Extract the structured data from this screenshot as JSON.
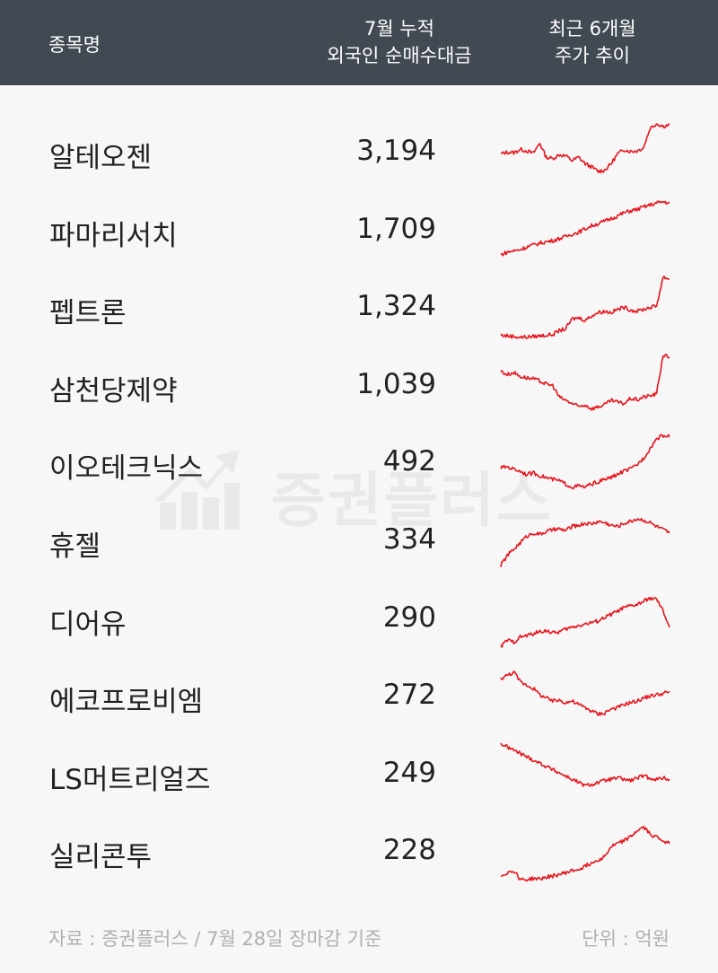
{
  "header": {
    "name_col": "종목명",
    "value_col_line1": "7월 누적",
    "value_col_line2": "외국인 순매수대금",
    "trend_col_line1": "최근 6개월",
    "trend_col_line2": "주가 추이"
  },
  "watermark": "증권플러스",
  "footer": {
    "source": "자료 : 증권플러스 / 7월 28일 장마감 기준",
    "unit": "단위 : 억원"
  },
  "colors": {
    "header_bg": "#414952",
    "line": "#e8141c",
    "text": "#222222",
    "muted": "#b0b0b0"
  },
  "chart_data": {
    "type": "table",
    "columns": [
      "종목명",
      "7월 누적 외국인 순매수대금",
      "최근 6개월 주가 추이"
    ],
    "rows": [
      {
        "name": "알테오젠",
        "value": "3,194",
        "trend": [
          45,
          48,
          47,
          52,
          50,
          46,
          62,
          40,
          38,
          44,
          42,
          35,
          40,
          30,
          25,
          18,
          20,
          30,
          45,
          52,
          49,
          50,
          55,
          85,
          92,
          88,
          90
        ]
      },
      {
        "name": "파마리서치",
        "value": "1,709",
        "trend": [
          10,
          14,
          16,
          18,
          22,
          25,
          28,
          30,
          32,
          35,
          38,
          42,
          45,
          50,
          55,
          58,
          62,
          66,
          70,
          75,
          78,
          80,
          84,
          87,
          90,
          92,
          90
        ]
      },
      {
        "name": "펩트론",
        "value": "1,324",
        "trend": [
          5,
          4,
          3,
          2,
          2,
          3,
          4,
          5,
          6,
          12,
          15,
          30,
          32,
          28,
          35,
          40,
          42,
          40,
          45,
          48,
          44,
          42,
          45,
          48,
          50,
          95,
          92
        ]
      },
      {
        "name": "삼천당제약",
        "value": "1,039",
        "trend": [
          70,
          65,
          68,
          62,
          60,
          58,
          55,
          50,
          48,
          30,
          25,
          20,
          15,
          18,
          12,
          15,
          18,
          25,
          22,
          20,
          28,
          26,
          30,
          32,
          35,
          95,
          92
        ]
      },
      {
        "name": "이오테크닉스",
        "value": "492",
        "trend": [
          40,
          42,
          38,
          35,
          30,
          32,
          28,
          25,
          22,
          20,
          15,
          10,
          12,
          10,
          15,
          18,
          22,
          25,
          30,
          35,
          38,
          45,
          55,
          70,
          85,
          90,
          88
        ]
      },
      {
        "name": "휴젤",
        "value": "334",
        "trend": [
          10,
          25,
          35,
          45,
          55,
          60,
          58,
          62,
          65,
          66,
          64,
          70,
          72,
          75,
          74,
          78,
          76,
          72,
          70,
          75,
          78,
          82,
          80,
          76,
          70,
          65,
          60
        ]
      },
      {
        "name": "디어유",
        "value": "290",
        "trend": [
          5,
          15,
          12,
          20,
          22,
          25,
          28,
          30,
          26,
          28,
          32,
          35,
          38,
          40,
          42,
          45,
          50,
          55,
          60,
          65,
          68,
          70,
          75,
          80,
          78,
          60,
          35
        ]
      },
      {
        "name": "에코프로비엠",
        "value": "272",
        "trend": [
          75,
          80,
          85,
          70,
          65,
          60,
          50,
          45,
          40,
          42,
          38,
          40,
          35,
          30,
          25,
          20,
          22,
          28,
          30,
          35,
          38,
          40,
          45,
          48,
          50,
          52,
          55
        ]
      },
      {
        "name": "LS머트리얼즈",
        "value": "249",
        "trend": [
          95,
          90,
          85,
          80,
          75,
          70,
          65,
          60,
          55,
          50,
          45,
          40,
          35,
          30,
          32,
          35,
          38,
          40,
          42,
          40,
          38,
          42,
          45,
          42,
          40,
          42,
          40
        ]
      },
      {
        "name": "실리콘투",
        "value": "228",
        "trend": [
          10,
          15,
          18,
          5,
          4,
          6,
          5,
          8,
          10,
          12,
          15,
          18,
          20,
          25,
          30,
          35,
          40,
          55,
          60,
          65,
          70,
          80,
          85,
          75,
          70,
          65,
          60
        ]
      }
    ]
  }
}
